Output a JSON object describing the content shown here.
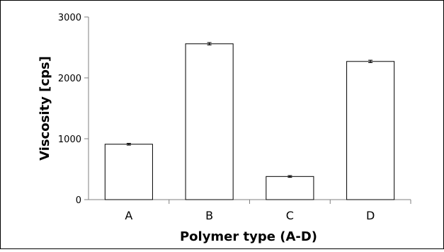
{
  "chart_data": {
    "type": "bar",
    "categories": [
      "A",
      "B",
      "C",
      "D"
    ],
    "values": [
      910,
      2560,
      380,
      2270
    ],
    "error": [
      15,
      20,
      15,
      20
    ],
    "title": "",
    "xlabel": "Polymer type (A-D)",
    "ylabel": "Viscosity [cps]",
    "ylim": [
      0,
      3000
    ],
    "yticks": [
      0,
      1000,
      2000,
      3000
    ],
    "ytick_labels": [
      "0",
      "1000",
      "2000",
      "3000"
    ],
    "grid": false,
    "legend": "none",
    "colors": {
      "bar_fill": "#ffffff",
      "bar_stroke": "#000000",
      "axis": "#7f7f7f",
      "text": "#000000"
    }
  }
}
